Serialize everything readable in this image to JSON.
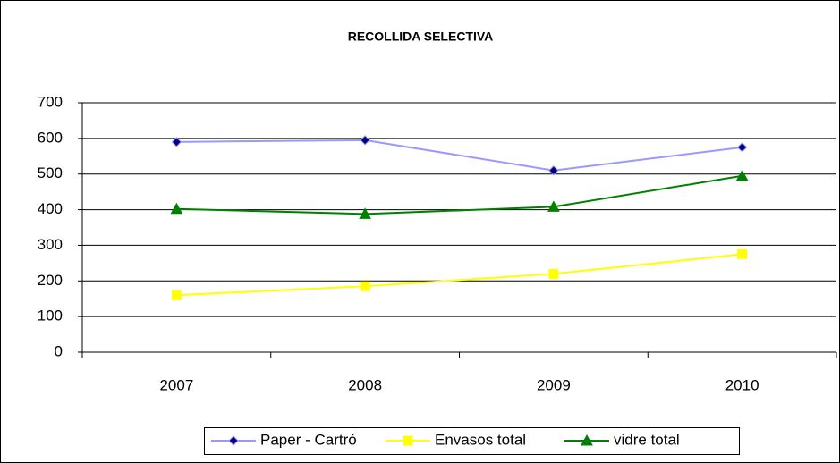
{
  "chart_data": {
    "type": "line",
    "title": "RECOLLIDA SELECTIVA",
    "categories": [
      "2007",
      "2008",
      "2009",
      "2010"
    ],
    "series": [
      {
        "name": "Paper - Cartró",
        "color": "#9999ff",
        "marker": "diamond",
        "marker_color": "#000080",
        "values": [
          590,
          595,
          510,
          575
        ]
      },
      {
        "name": "Envasos total",
        "color": "#ffff00",
        "marker": "square",
        "marker_color": "#ffff00",
        "values": [
          160,
          185,
          220,
          275
        ]
      },
      {
        "name": "vidre total",
        "color": "#008000",
        "marker": "triangle",
        "marker_color": "#008000",
        "values": [
          402,
          388,
          408,
          495
        ]
      }
    ],
    "ylim": [
      0,
      700
    ],
    "yticks": [
      0,
      100,
      200,
      300,
      400,
      500,
      600,
      700
    ],
    "grid": true,
    "legend": "bottom"
  }
}
